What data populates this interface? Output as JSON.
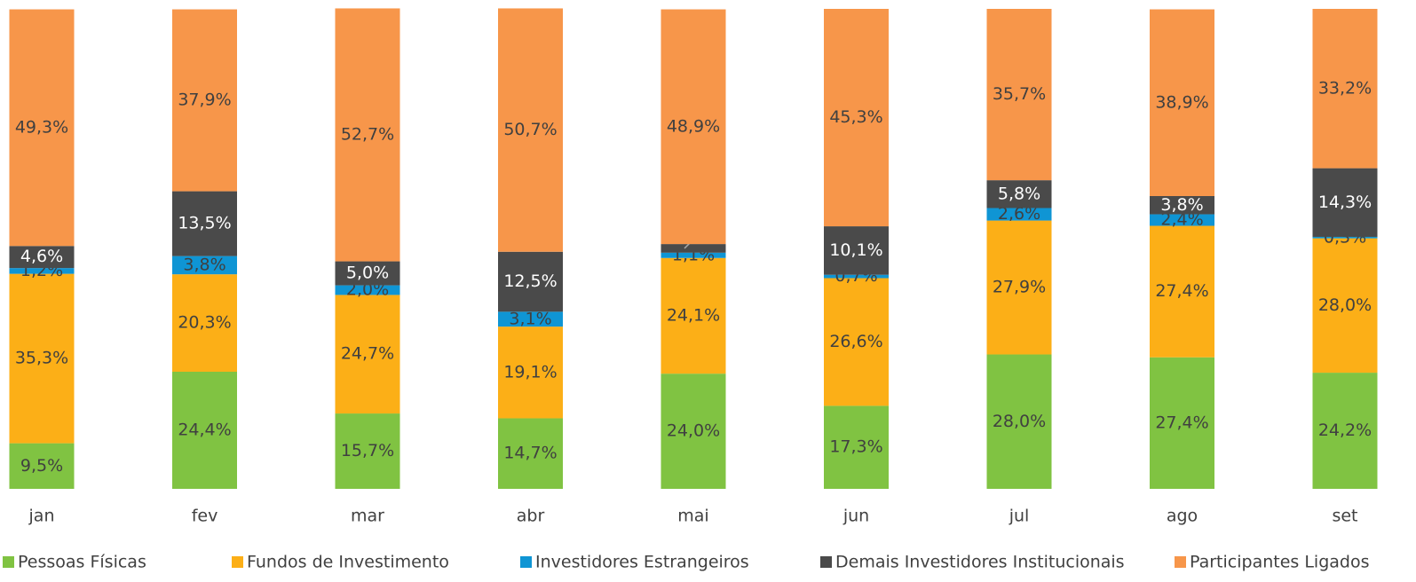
{
  "chart_data": {
    "type": "stacked_bar",
    "categories": [
      "jan",
      "fev",
      "mar",
      "abr",
      "mai",
      "jun",
      "jul",
      "ago",
      "set"
    ],
    "ylim": [
      0,
      100
    ],
    "legend": "bottom",
    "series": [
      {
        "name": "Pessoas Físicas",
        "color": "#80c342",
        "values": [
          9.5,
          24.4,
          15.7,
          14.7,
          24.0,
          17.3,
          28.0,
          27.4,
          24.2
        ],
        "value_labels": [
          "9,5%",
          "24,4%",
          "15,7%",
          "14,7%",
          "24,0%",
          "17,3%",
          "28,0%",
          "27,4%",
          "24,2%"
        ]
      },
      {
        "name": "Fundos de Investimento",
        "color": "#fcaf17",
        "values": [
          35.3,
          20.3,
          24.7,
          19.1,
          24.1,
          26.6,
          27.9,
          27.4,
          28.0
        ],
        "value_labels": [
          "35,3%",
          "20,3%",
          "24,7%",
          "19,1%",
          "24,1%",
          "26,6%",
          "27,9%",
          "27,4%",
          "28,0%"
        ]
      },
      {
        "name": "Investidores Estrangeiros",
        "color": "#0f95d4",
        "values": [
          1.2,
          3.8,
          2.0,
          3.1,
          1.1,
          0.7,
          2.6,
          2.4,
          0.3
        ],
        "value_labels": [
          "1,2%",
          "3,8%",
          "2,0%",
          "3,1%",
          "1,1%",
          "0,7%",
          "2,6%",
          "2,4%",
          "0,3%"
        ]
      },
      {
        "name": "Demais Investidores Institucionais",
        "color": "#4a4a4a",
        "values": [
          4.6,
          13.5,
          5.0,
          12.5,
          1.8,
          10.1,
          5.8,
          3.8,
          14.3
        ],
        "value_labels": [
          "4,6%",
          "13,5%",
          "5,0%",
          "12,5%",
          "1,8%",
          "10,1%",
          "5,8%",
          "3,8%",
          "14,3%"
        ]
      },
      {
        "name": "Participantes Ligados",
        "color": "#f7964a",
        "values": [
          49.3,
          37.9,
          52.7,
          50.7,
          48.9,
          45.3,
          35.7,
          38.9,
          33.2
        ],
        "value_labels": [
          "49,3%",
          "37,9%",
          "52,7%",
          "50,7%",
          "48,9%",
          "45,3%",
          "35,7%",
          "38,9%",
          "33,2%"
        ]
      }
    ]
  }
}
